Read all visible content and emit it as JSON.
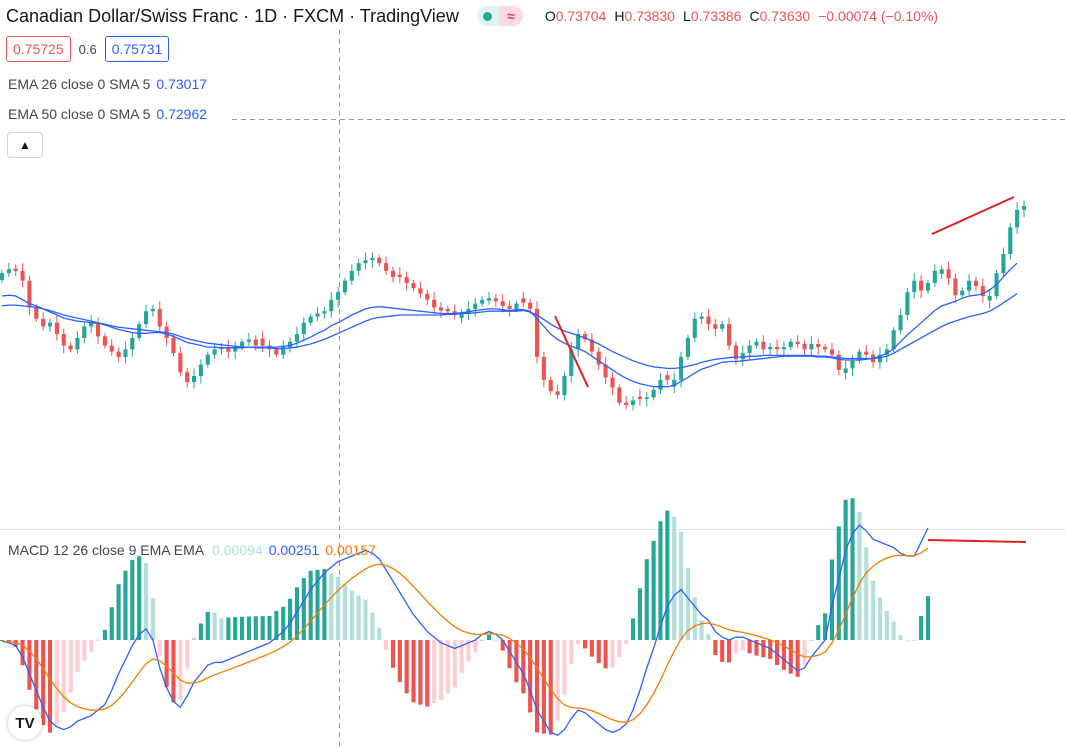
{
  "header": {
    "title": "Canadian Dollar/Swiss Franc · 1D · FXCM · TradingView",
    "ohlc": [
      {
        "k": "O",
        "v": "0.73704"
      },
      {
        "k": "H",
        "v": "0.73830"
      },
      {
        "k": "L",
        "v": "0.73386"
      },
      {
        "k": "C",
        "v": "0.73630"
      }
    ],
    "change": "−0.00074 (−0.10%)",
    "wave_glyph": "≈"
  },
  "quote": {
    "sell": "0.75725",
    "spread": "0.6",
    "buy": "0.75731"
  },
  "indicators": {
    "ema26": {
      "label": "EMA 26 close 0 SMA 5",
      "value": "0.73017"
    },
    "ema50": {
      "label": "EMA 50 close 0 SMA 5",
      "value": "0.72962"
    }
  },
  "macd": {
    "label": "MACD 12 26 close 9 EMA EMA",
    "hist_value": "0.00094",
    "macd_value": "0.00251",
    "signal_value": "0.00157"
  },
  "colors": {
    "up": "#26a69a",
    "down": "#ef5350",
    "ema": "#2962ff",
    "signal": "#f57c00",
    "hist_up_strong": "#26a69a",
    "hist_up_weak": "#b2dfdb",
    "hist_down_strong": "#ef5350",
    "hist_down_weak": "#ffcdd2",
    "trend": "#e0201f"
  },
  "chart_data": {
    "type": "candlestick",
    "price_path": [
      0.7225,
      0.723,
      0.7228,
      0.7215,
      0.718,
      0.7165,
      0.7155,
      0.716,
      0.7145,
      0.713,
      0.7125,
      0.714,
      0.7155,
      0.716,
      0.7142,
      0.713,
      0.7122,
      0.7115,
      0.7125,
      0.714,
      0.7158,
      0.7175,
      0.7178,
      0.7155,
      0.714,
      0.712,
      0.7095,
      0.7082,
      0.709,
      0.7105,
      0.7118,
      0.7125,
      0.7128,
      0.7122,
      0.7128,
      0.7135,
      0.7138,
      0.713,
      0.713,
      0.7125,
      0.7118,
      0.7128,
      0.7135,
      0.7145,
      0.716,
      0.7168,
      0.7172,
      0.7175,
      0.719,
      0.72,
      0.7215,
      0.7228,
      0.7238,
      0.7242,
      0.7245,
      0.7238,
      0.7228,
      0.722,
      0.722,
      0.7212,
      0.7205,
      0.7198,
      0.719,
      0.718,
      0.7176,
      0.7175,
      0.717,
      0.7172,
      0.7178,
      0.7185,
      0.719,
      0.7192,
      0.7188,
      0.7182,
      0.7178,
      0.7185,
      0.7186,
      0.7178,
      0.7115,
      0.7085,
      0.707,
      0.7065,
      0.709,
      0.7125,
      0.7145,
      0.7138,
      0.7122,
      0.7105,
      0.7088,
      0.7075,
      0.7055,
      0.7052,
      0.7058,
      0.706,
      0.7062,
      0.7072,
      0.7085,
      0.7085,
      0.7085,
      0.7115,
      0.714,
      0.7165,
      0.7168,
      0.7158,
      0.7152,
      0.7158,
      0.713,
      0.7112,
      0.712,
      0.713,
      0.7135,
      0.7125,
      0.7128,
      0.7125,
      0.7128,
      0.7135,
      0.7132,
      0.7125,
      0.7132,
      0.7128,
      0.7125,
      0.7118,
      0.7098,
      0.71,
      0.711,
      0.7122,
      0.7118,
      0.7108,
      0.7118,
      0.7125,
      0.715,
      0.717,
      0.72,
      0.7215,
      0.7202,
      0.7212,
      0.7228,
      0.723,
      0.7218,
      0.7196,
      0.7202,
      0.7215,
      0.7208,
      0.7195,
      0.7195,
      0.7225,
      0.725,
      0.7285,
      0.7308,
      0.7313
    ],
    "ema26_path": [
      0.7195,
      0.7196,
      0.7195,
      0.719,
      0.7185,
      0.7182,
      0.7178,
      0.7174,
      0.717,
      0.7166,
      0.7164,
      0.7162,
      0.7161,
      0.716,
      0.7159,
      0.7157,
      0.7154,
      0.7151,
      0.7149,
      0.7147,
      0.7146,
      0.7146,
      0.7147,
      0.7147,
      0.7145,
      0.7142,
      0.7138,
      0.7134,
      0.7132,
      0.713,
      0.7128,
      0.7128,
      0.7127,
      0.7127,
      0.7127,
      0.7127,
      0.7128,
      0.7128,
      0.7128,
      0.7128,
      0.7128,
      0.7129,
      0.713,
      0.7133,
      0.7137,
      0.7141,
      0.7146,
      0.715,
      0.7156,
      0.716,
      0.7165,
      0.717,
      0.7174,
      0.7178,
      0.718,
      0.7181,
      0.718,
      0.7179,
      0.7178,
      0.7177,
      0.7176,
      0.7175,
      0.7174,
      0.7173,
      0.7172,
      0.7172,
      0.7172,
      0.7173,
      0.7174,
      0.7176,
      0.7177,
      0.7178,
      0.7178,
      0.7177,
      0.7176,
      0.7177,
      0.7177,
      0.7175,
      0.7165,
      0.7155,
      0.7145,
      0.7138,
      0.7133,
      0.7129,
      0.7126,
      0.7122,
      0.7116,
      0.711,
      0.7104,
      0.7098,
      0.7092,
      0.7087,
      0.7083,
      0.708,
      0.7078,
      0.7076,
      0.7076,
      0.7076,
      0.7078,
      0.7083,
      0.7088,
      0.7094,
      0.7099,
      0.7102,
      0.7105,
      0.7108,
      0.7109,
      0.7109,
      0.711,
      0.7111,
      0.7112,
      0.7113,
      0.7114,
      0.7115,
      0.7116,
      0.7116,
      0.7116,
      0.7116,
      0.7116,
      0.7115,
      0.7115,
      0.7114,
      0.7112,
      0.7111,
      0.7111,
      0.7111,
      0.7112,
      0.7113,
      0.7116,
      0.712,
      0.7126,
      0.7135,
      0.7144,
      0.7152,
      0.716,
      0.7168,
      0.7176,
      0.7182,
      0.7185,
      0.7188,
      0.7192,
      0.7195,
      0.7196,
      0.7198,
      0.7203,
      0.721,
      0.722,
      0.723,
      0.7238
    ],
    "ema50_path": [
      0.7182,
      0.7183,
      0.7183,
      0.7182,
      0.7181,
      0.718,
      0.7178,
      0.7176,
      0.7173,
      0.717,
      0.7168,
      0.7166,
      0.7164,
      0.7162,
      0.716,
      0.7158,
      0.7156,
      0.7154,
      0.7153,
      0.7152,
      0.7151,
      0.715,
      0.7149,
      0.7148,
      0.7147,
      0.7145,
      0.7142,
      0.7139,
      0.7137,
      0.7135,
      0.7133,
      0.7132,
      0.7131,
      0.713,
      0.7129,
      0.7128,
      0.7128,
      0.7127,
      0.7127,
      0.7127,
      0.7126,
      0.7126,
      0.7127,
      0.7128,
      0.713,
      0.7132,
      0.7135,
      0.7138,
      0.7142,
      0.7146,
      0.715,
      0.7154,
      0.7158,
      0.7162,
      0.7165,
      0.7167,
      0.7168,
      0.7169,
      0.717,
      0.717,
      0.717,
      0.717,
      0.717,
      0.717,
      0.717,
      0.7171,
      0.7171,
      0.7172,
      0.7172,
      0.7173,
      0.7174,
      0.7175,
      0.7175,
      0.7175,
      0.7175,
      0.7175,
      0.7176,
      0.7174,
      0.717,
      0.7164,
      0.7158,
      0.7153,
      0.7149,
      0.7146,
      0.7143,
      0.714,
      0.7136,
      0.7132,
      0.7127,
      0.7122,
      0.7118,
      0.7114,
      0.711,
      0.7107,
      0.7104,
      0.7102,
      0.7101,
      0.71,
      0.71,
      0.7101,
      0.7103,
      0.7105,
      0.7108,
      0.711,
      0.7112,
      0.7113,
      0.7114,
      0.7115,
      0.7115,
      0.7116,
      0.7116,
      0.7117,
      0.7117,
      0.7117,
      0.7117,
      0.7117,
      0.7117,
      0.7117,
      0.7117,
      0.7116,
      0.7116,
      0.7115,
      0.7114,
      0.7113,
      0.7113,
      0.7113,
      0.7113,
      0.7113,
      0.7114,
      0.7116,
      0.712,
      0.7125,
      0.713,
      0.7135,
      0.714,
      0.7145,
      0.715,
      0.7155,
      0.7159,
      0.7162,
      0.7165,
      0.7168,
      0.717,
      0.7172,
      0.7175,
      0.718,
      0.7186,
      0.7192,
      0.7198
    ],
    "macd_path": [
      -5e-05,
      -0.0001,
      -0.0002,
      -0.0006,
      -0.0012,
      -0.0018,
      -0.0024,
      -0.0029,
      -0.0031,
      -0.0032,
      -0.0031,
      -0.0029,
      -0.0028,
      -0.0027,
      -0.0025,
      -0.0023,
      -0.0018,
      -0.0012,
      -0.0007,
      -0.0002,
      0.0002,
      0.0004,
      0.0,
      -0.001,
      -0.0017,
      -0.0022,
      -0.0024,
      -0.002,
      -0.0015,
      -0.0012,
      -0.0009,
      -0.0008,
      -0.0008,
      -0.0007,
      -0.0006,
      -0.0005,
      -0.0004,
      -0.0003,
      -0.0002,
      -0.0001,
      0.0001,
      0.0003,
      0.0006,
      0.001,
      0.0014,
      0.0018,
      0.0021,
      0.0024,
      0.0026,
      0.0028,
      0.0029,
      0.003,
      0.0031,
      0.0032,
      0.0031,
      0.0029,
      0.0025,
      0.0021,
      0.0017,
      0.0013,
      0.0009,
      0.0006,
      0.0003,
      0.0001,
      -0.0001,
      -0.0002,
      -0.0003,
      -0.0002,
      -0.0001,
      0.0,
      0.0002,
      0.0003,
      0.0002,
      0.0,
      -0.0004,
      -0.0008,
      -0.0012,
      -0.0018,
      -0.0025,
      -0.0029,
      -0.0033,
      -0.0034,
      -0.0032,
      -0.0028,
      -0.0025,
      -0.0026,
      -0.0028,
      -0.003,
      -0.0032,
      -0.0033,
      -0.0032,
      -0.003,
      -0.0025,
      -0.0018,
      -0.001,
      -0.0003,
      0.0005,
      0.0012,
      0.0016,
      0.0018,
      0.0015,
      0.0012,
      0.0009,
      0.0007,
      0.0003,
      0.0001,
      0.0,
      0.0001,
      0.0001,
      0.0,
      -0.0001,
      -0.0002,
      -0.0003,
      -0.0005,
      -0.0007,
      -0.0009,
      -0.0011,
      -0.001,
      -0.0006,
      -0.0003,
      0.0,
      0.0012,
      0.0022,
      0.0032,
      0.0038,
      0.0041,
      0.0039,
      0.0036,
      0.0035,
      0.0034,
      0.0033,
      0.0031,
      0.003,
      0.003,
      0.0035,
      0.004
    ]
  }
}
